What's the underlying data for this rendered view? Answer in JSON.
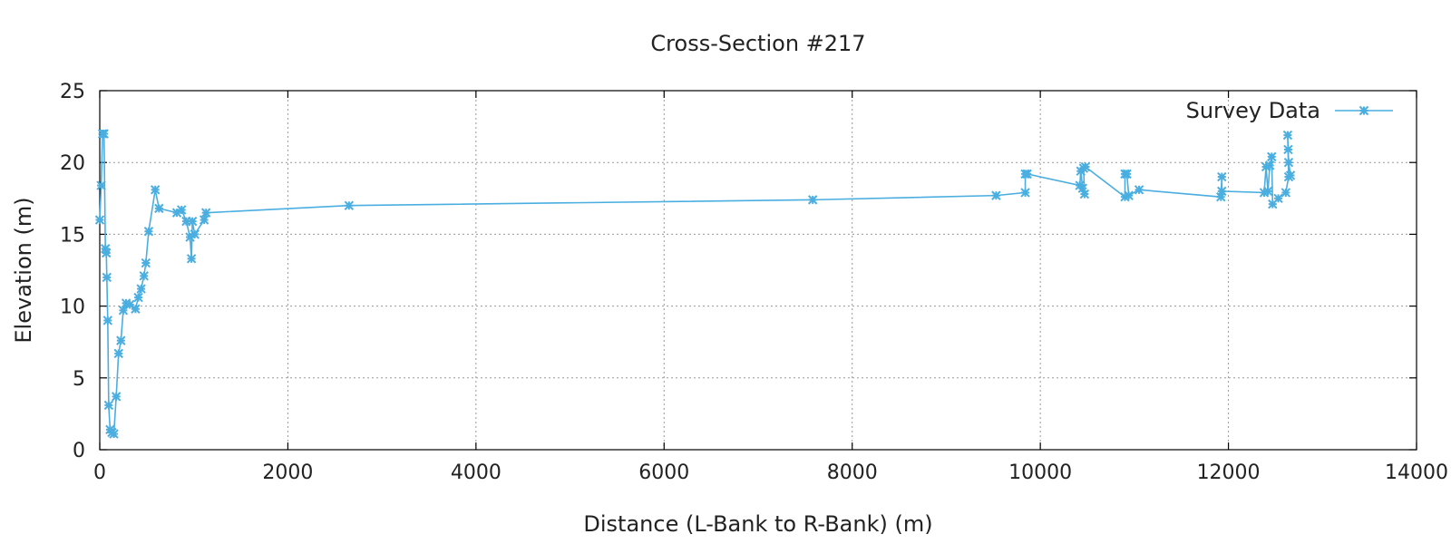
{
  "chart_data": {
    "type": "line",
    "title": "Cross-Section #217",
    "xlabel": "Distance (L-Bank to R-Bank) (m)",
    "ylabel": "Elevation (m)",
    "xlim": [
      0,
      14000
    ],
    "ylim": [
      0,
      25
    ],
    "x_ticks": [
      0,
      2000,
      4000,
      6000,
      8000,
      10000,
      12000,
      14000
    ],
    "y_ticks": [
      0,
      5,
      10,
      15,
      20,
      25
    ],
    "grid": true,
    "legend_position": "top-right",
    "series": [
      {
        "name": "Survey Data",
        "color": "#4aaee0",
        "marker": "asterisk",
        "points": [
          [
            0,
            16.0
          ],
          [
            15,
            18.4
          ],
          [
            30,
            22.0
          ],
          [
            45,
            22.0
          ],
          [
            60,
            14.0
          ],
          [
            70,
            13.7
          ],
          [
            75,
            12.0
          ],
          [
            85,
            9.0
          ],
          [
            95,
            3.1
          ],
          [
            110,
            1.4
          ],
          [
            130,
            1.2
          ],
          [
            150,
            1.1
          ],
          [
            175,
            3.7
          ],
          [
            200,
            6.7
          ],
          [
            225,
            7.6
          ],
          [
            250,
            9.7
          ],
          [
            280,
            10.2
          ],
          [
            320,
            10.1
          ],
          [
            380,
            9.8
          ],
          [
            410,
            10.6
          ],
          [
            440,
            11.2
          ],
          [
            470,
            12.1
          ],
          [
            490,
            13.0
          ],
          [
            520,
            15.2
          ],
          [
            590,
            18.1
          ],
          [
            630,
            16.8
          ],
          [
            820,
            16.5
          ],
          [
            870,
            16.7
          ],
          [
            920,
            15.9
          ],
          [
            960,
            14.8
          ],
          [
            975,
            13.3
          ],
          [
            985,
            15.9
          ],
          [
            1010,
            15.0
          ],
          [
            1110,
            16.0
          ],
          [
            1130,
            16.5
          ],
          [
            2650,
            17.0
          ],
          [
            7580,
            17.4
          ],
          [
            9530,
            17.7
          ],
          [
            9840,
            17.9
          ],
          [
            9840,
            19.2
          ],
          [
            9860,
            19.2
          ],
          [
            10420,
            18.4
          ],
          [
            10430,
            19.4
          ],
          [
            10450,
            18.2
          ],
          [
            10470,
            17.8
          ],
          [
            10460,
            19.6
          ],
          [
            10480,
            19.7
          ],
          [
            10900,
            17.6
          ],
          [
            10900,
            19.2
          ],
          [
            10920,
            19.2
          ],
          [
            10940,
            17.7
          ],
          [
            11050,
            18.1
          ],
          [
            11920,
            17.6
          ],
          [
            11930,
            19.0
          ],
          [
            11930,
            18.0
          ],
          [
            12380,
            17.9
          ],
          [
            12400,
            19.7
          ],
          [
            12420,
            18.0
          ],
          [
            12440,
            19.8
          ],
          [
            12460,
            20.4
          ],
          [
            12470,
            17.1
          ],
          [
            12530,
            17.5
          ],
          [
            12610,
            17.9
          ],
          [
            12640,
            19.0
          ],
          [
            12630,
            21.9
          ],
          [
            12635,
            20.9
          ],
          [
            12640,
            20.0
          ],
          [
            12660,
            19.1
          ]
        ]
      }
    ]
  }
}
